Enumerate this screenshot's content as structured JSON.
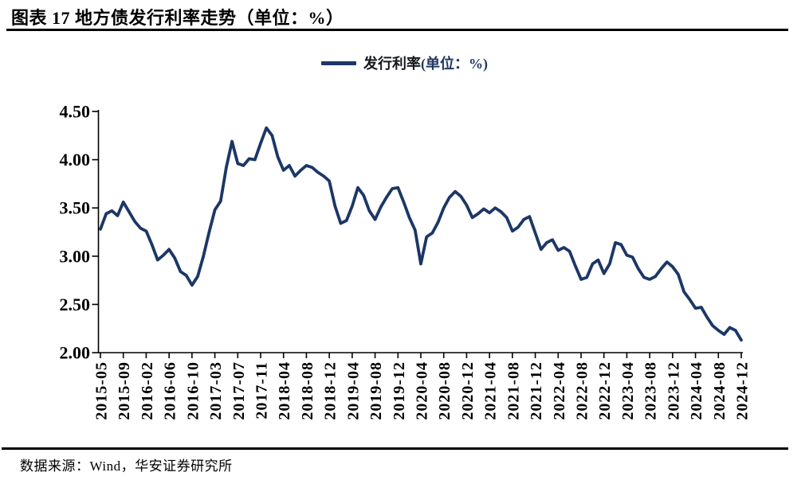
{
  "header": {
    "title": "图表 17  地方债发行利率走势（单位：%）"
  },
  "legend": {
    "series_label": "发行利率",
    "series_unit": "(单位：%)"
  },
  "footer": {
    "source": "数据来源：Wind，华安证券研究所"
  },
  "chart_data": {
    "type": "line",
    "title": "图表 17 地方债发行利率走势（单位：%）",
    "legend": [
      "发行利率(单位：%)"
    ],
    "legend_position": "top-center",
    "grid": false,
    "xlabel": "",
    "ylabel": "",
    "ylim": [
      2.0,
      4.5
    ],
    "y_tick_labels": [
      "4.50",
      "4.00",
      "3.50",
      "3.00",
      "2.50",
      "2.00"
    ],
    "x_tick_labels": [
      "2015-05",
      "2015-09",
      "2016-02",
      "2016-06",
      "2016-10",
      "2017-03",
      "2017-07",
      "2017-11",
      "2018-04",
      "2018-08",
      "2018-12",
      "2019-04",
      "2019-08",
      "2019-12",
      "2020-04",
      "2020-08",
      "2020-12",
      "2021-04",
      "2021-08",
      "2021-12",
      "2022-04",
      "2022-08",
      "2022-12",
      "2023-04",
      "2023-08",
      "2023-12",
      "2024-04",
      "2024-08",
      "2024-12"
    ],
    "tick_every": 4,
    "values": [
      3.28,
      3.44,
      3.47,
      3.42,
      3.56,
      3.46,
      3.36,
      3.29,
      3.26,
      3.12,
      2.96,
      3.01,
      3.07,
      2.98,
      2.84,
      2.8,
      2.7,
      2.79,
      3.0,
      3.25,
      3.48,
      3.57,
      3.92,
      4.19,
      3.96,
      3.94,
      4.01,
      4.0,
      4.17,
      4.33,
      4.25,
      4.03,
      3.89,
      3.94,
      3.83,
      3.89,
      3.94,
      3.92,
      3.87,
      3.83,
      3.78,
      3.52,
      3.34,
      3.37,
      3.52,
      3.71,
      3.63,
      3.47,
      3.38,
      3.51,
      3.61,
      3.7,
      3.71,
      3.56,
      3.4,
      3.27,
      2.92,
      3.2,
      3.24,
      3.35,
      3.5,
      3.61,
      3.67,
      3.62,
      3.53,
      3.4,
      3.44,
      3.49,
      3.45,
      3.5,
      3.46,
      3.4,
      3.26,
      3.3,
      3.38,
      3.41,
      3.24,
      3.07,
      3.14,
      3.17,
      3.06,
      3.09,
      3.05,
      2.9,
      2.76,
      2.78,
      2.92,
      2.96,
      2.82,
      2.92,
      3.14,
      3.12,
      3.01,
      2.99,
      2.87,
      2.78,
      2.76,
      2.79,
      2.87,
      2.94,
      2.89,
      2.81,
      2.63,
      2.55,
      2.46,
      2.47,
      2.37,
      2.28,
      2.23,
      2.19,
      2.26,
      2.23,
      2.13
    ],
    "line_color": "#1c3766",
    "axis_color": "#000000",
    "label_color": "#000000"
  }
}
